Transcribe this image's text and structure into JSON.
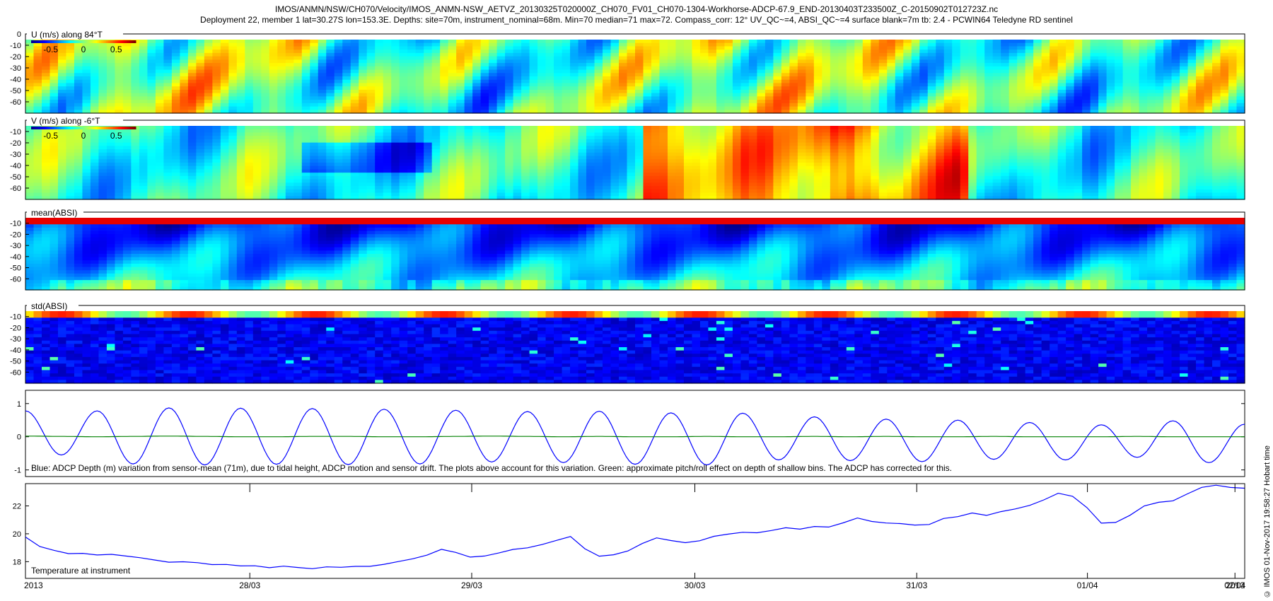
{
  "header": {
    "line1": "IMOS/ANMN/NSW/CH070/Velocity/IMOS_ANMN-NSW_AETVZ_20130325T020000Z_CH070_FV01_CH070-1304-Workhorse-ADCP-67.9_END-20130403T233500Z_C-20150902T012723Z.nc",
    "line2": "Deployment 22, member 1 lat=30.27S lon=153.3E. Depths: site=70m, instrument_nominal=68m. Min=70 median=71 max=72. Compass_corr: 12° UV_QC~=4, ABSI_QC~=4 surface blank=7m tb: 2.4 - PCWIN64 Teledyne RD sentinel"
  },
  "side_note": "© IMOS 01-Nov-2017 19:58:27 Hobart time",
  "colors": {
    "line": "#0000ff",
    "pitch_line": "#008000",
    "jet": [
      "#00008f",
      "#0000ff",
      "#0080ff",
      "#00ffff",
      "#80ff80",
      "#ffff00",
      "#ff8000",
      "#ff0000",
      "#800000"
    ]
  },
  "chart_data": [
    {
      "type": "heatmap",
      "label": "U (m/s) along 84°T",
      "colorbar_ticks": [
        "-0.5",
        "0",
        "0.5"
      ],
      "clim": [
        -0.8,
        0.8
      ],
      "yticks": [
        "0",
        "-10",
        "-20",
        "-30",
        "-40",
        "-50",
        "-60"
      ],
      "ylim": [
        -70,
        0
      ]
    },
    {
      "type": "heatmap",
      "label": "V (m/s) along -6°T",
      "colorbar_ticks": [
        "-0.5",
        "0",
        "0.5"
      ],
      "clim": [
        -0.8,
        0.8
      ],
      "yticks": [
        "-10",
        "-20",
        "-30",
        "-40",
        "-50",
        "-60"
      ],
      "ylim": [
        -70,
        0
      ]
    },
    {
      "type": "heatmap",
      "label": "mean(ABSI)",
      "yticks": [
        "-10",
        "-20",
        "-30",
        "-40",
        "-50",
        "-60"
      ],
      "ylim": [
        -70,
        0
      ]
    },
    {
      "type": "heatmap",
      "label": "std(ABSI)",
      "yticks": [
        "-10",
        "-20",
        "-30",
        "-40",
        "-50",
        "-60"
      ],
      "ylim": [
        -70,
        0
      ]
    },
    {
      "type": "line",
      "caption": "Blue: ADCP Depth (m) variation from sensor-mean (71m), due to tidal height, ADCP motion and sensor drift. The plots above account for this variation. Green: approximate pitch/roll effect on depth of shallow bins. The ADCP has corrected for this.",
      "yticks": [
        "1",
        "0",
        "-1"
      ],
      "ylim": [
        -1.2,
        1.4
      ],
      "series": [
        {
          "values": [
            0.78,
            -0.55,
            0.78,
            -0.82,
            0.87,
            -0.85,
            0.86,
            -0.83,
            0.85,
            -0.84,
            0.83,
            -0.82,
            0.8,
            -0.76,
            0.76,
            -0.78,
            0.77,
            -0.83,
            0.72,
            -0.85,
            0.71,
            -0.7,
            0.6,
            -0.72,
            0.53,
            -0.75,
            0.5,
            -0.68,
            0.43,
            -0.7,
            0.36,
            -0.62,
            0.48,
            -0.78,
            0.38
          ]
        },
        {
          "values": [
            0.02,
            0.01,
            0.0,
            0.01,
            0.02,
            0.01,
            0.0,
            0.0,
            0.01,
            0.01,
            0.0,
            0.0,
            0.01,
            0.02,
            0.01,
            0.0,
            0.01,
            0.0,
            0.0,
            0.01,
            0.0,
            0.0,
            0.01,
            0.0,
            0.01,
            0.0,
            0.0,
            0.01,
            0.0,
            0.0,
            0.0,
            0.01,
            0.0,
            0.0,
            0.0
          ]
        }
      ]
    },
    {
      "type": "line",
      "caption": "Temperature at instrument",
      "yticks": [
        "22",
        "20",
        "18"
      ],
      "ylim": [
        16.8,
        23.6
      ],
      "x_ticks": [
        "2013",
        "28/03",
        "29/03",
        "30/03",
        "31/03",
        "01/04",
        "02/04",
        "2013"
      ],
      "series": [
        {
          "values": [
            19.8,
            19.1,
            18.8,
            18.6,
            18.6,
            18.5,
            18.5,
            18.4,
            18.3,
            18.1,
            18.0,
            18.0,
            17.9,
            17.8,
            17.8,
            17.7,
            17.7,
            17.6,
            17.7,
            17.6,
            17.5,
            17.6,
            17.6,
            17.7,
            17.7,
            17.8,
            18.0,
            18.2,
            18.5,
            18.9,
            18.7,
            18.3,
            18.4,
            18.6,
            18.9,
            19.0,
            19.2,
            19.5,
            19.8,
            18.9,
            18.4,
            18.5,
            18.8,
            19.3,
            19.7,
            19.5,
            19.4,
            19.5,
            19.8,
            20.0,
            20.1,
            20.1,
            20.2,
            20.4,
            20.3,
            20.5,
            20.5,
            20.8,
            21.1,
            20.9,
            20.8,
            20.7,
            20.6,
            20.7,
            21.1,
            21.2,
            21.5,
            21.3,
            21.6,
            21.8,
            22.0,
            22.4,
            22.9,
            22.7,
            21.9,
            20.8,
            20.8,
            21.3,
            22.0,
            22.3,
            22.4,
            22.9,
            23.3,
            23.5,
            23.3,
            23.3
          ]
        }
      ]
    }
  ]
}
